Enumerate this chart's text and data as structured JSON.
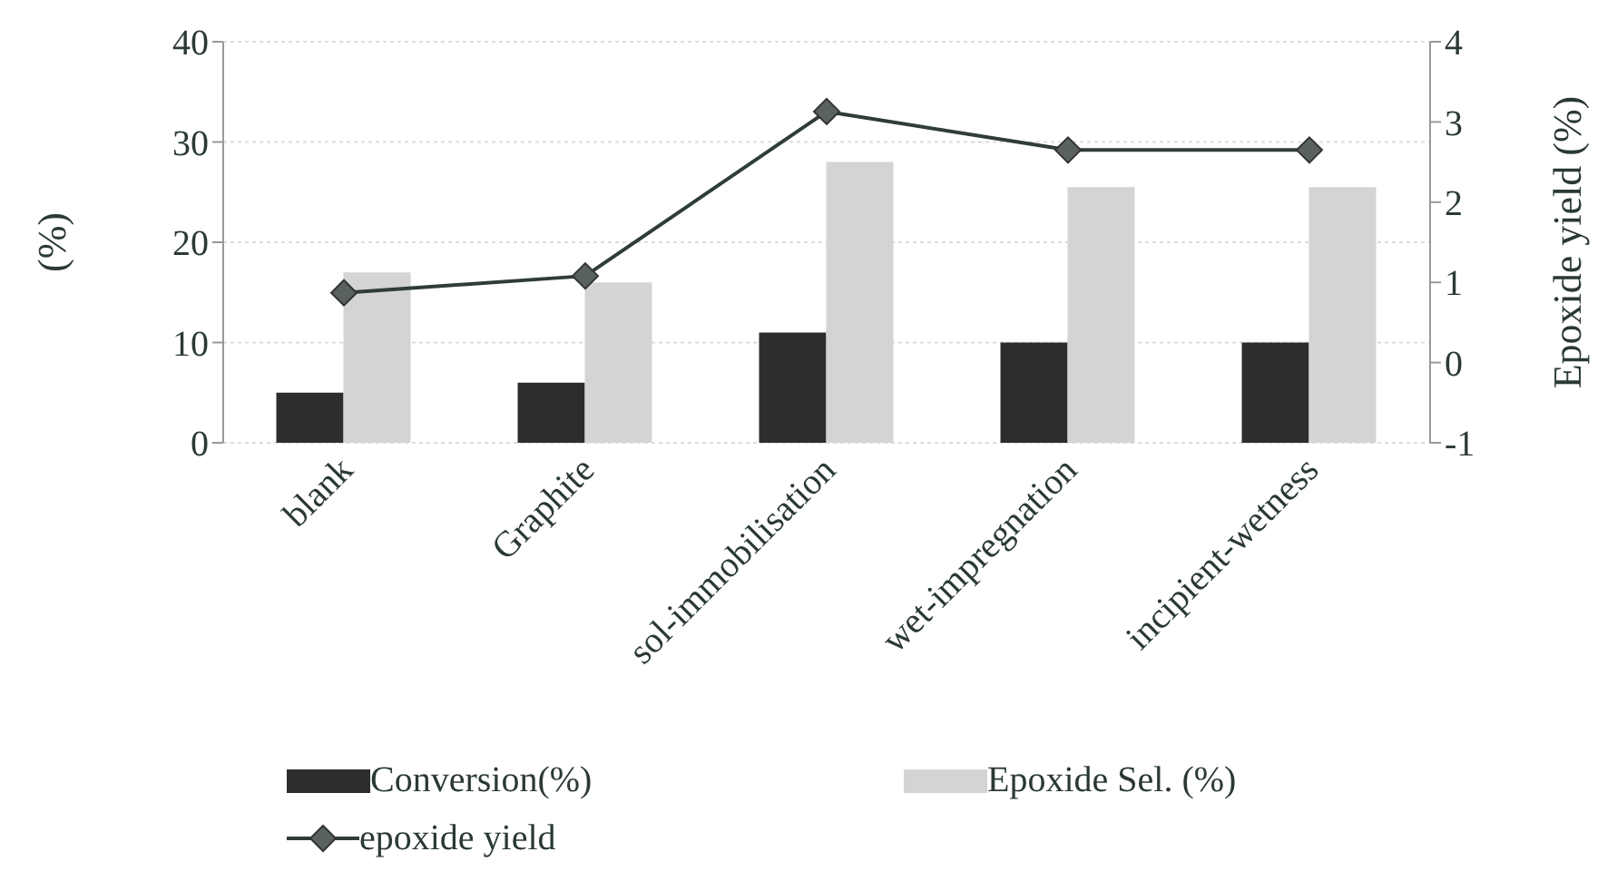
{
  "chart_data": {
    "type": "bar",
    "categories": [
      "blank",
      "Graphite",
      "sol-immobilisation",
      "wet-impregnation",
      "incipient-wetness"
    ],
    "series": [
      {
        "name": "Conversion(%)",
        "color": "#2b2e2c",
        "values": [
          5,
          6,
          11,
          10,
          10
        ]
      },
      {
        "name": "Epoxide Sel. (%)",
        "color": "#d4d4d4",
        "values": [
          17,
          16,
          28,
          25.5,
          25.5
        ]
      },
      {
        "name": "epoxide yield",
        "type": "line",
        "axis": "y2",
        "color": "#2e3d36",
        "marker": "diamond",
        "values": [
          0.87,
          1.08,
          3.13,
          2.65,
          2.65
        ]
      }
    ],
    "ylabel": "(%)",
    "y2label": "Epoxide yield (%)",
    "ylim": [
      0,
      40
    ],
    "yticks": [
      0,
      10,
      20,
      30,
      40
    ],
    "y2lim": [
      -1,
      4
    ],
    "y2ticks": [
      -1,
      0,
      1,
      2,
      3,
      4
    ],
    "grid": "y",
    "legend": "bottom"
  }
}
